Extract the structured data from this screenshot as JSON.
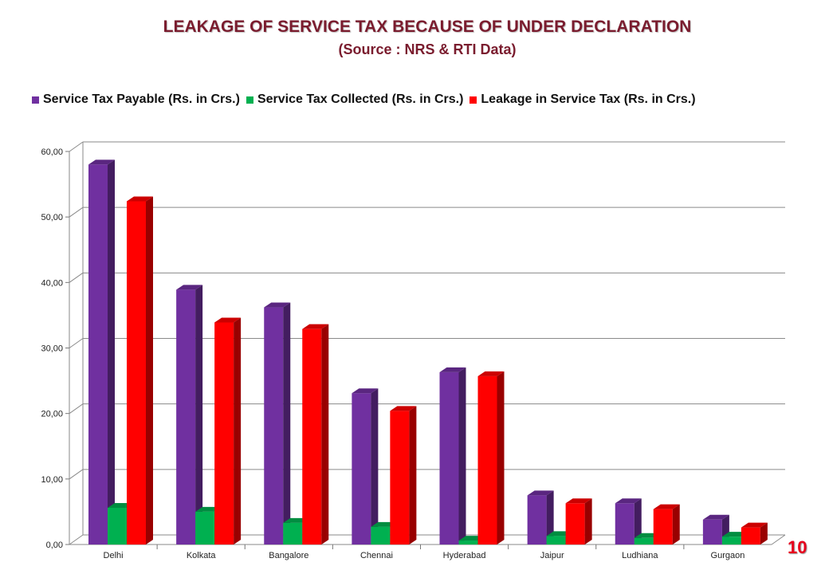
{
  "page": {
    "title": "LEAKAGE OF SERVICE TAX BECAUSE OF UNDER DECLARATION",
    "subtitle": "(Source : NRS & RTI Data)",
    "page_number": "10"
  },
  "chart_data": {
    "type": "bar",
    "categories": [
      "Delhi",
      "Kolkata",
      "Bangalore",
      "Chennai",
      "Hyderabad",
      "Jaipur",
      "Ludhiana",
      "Gurgaon"
    ],
    "series": [
      {
        "name": "Service Tax Payable (Rs. in Crs.)",
        "color": "#7030a0",
        "values": [
          58.0,
          38.9,
          36.2,
          23.1,
          26.3,
          7.5,
          6.3,
          3.8
        ]
      },
      {
        "name": "Service Tax Collected (Rs. in Crs.)",
        "color": "#00b050",
        "values": [
          5.6,
          5.0,
          3.3,
          2.7,
          0.6,
          1.3,
          1.0,
          1.2
        ]
      },
      {
        "name": "Leakage in Service Tax (Rs. in Crs.)",
        "color": "#ff0000",
        "values": [
          52.4,
          33.9,
          32.9,
          20.4,
          25.7,
          6.3,
          5.4,
          2.6
        ]
      }
    ],
    "title": "LEAKAGE OF SERVICE TAX BECAUSE OF UNDER DECLARATION",
    "subtitle": "(Source : NRS & RTI Data)",
    "xlabel": "",
    "ylabel": "",
    "ylim": [
      0,
      60
    ],
    "yticks": [
      "0,00",
      "10,00",
      "20,00",
      "30,00",
      "40,00",
      "50,00",
      "60,00"
    ],
    "grid": true,
    "legend_position": "top"
  }
}
